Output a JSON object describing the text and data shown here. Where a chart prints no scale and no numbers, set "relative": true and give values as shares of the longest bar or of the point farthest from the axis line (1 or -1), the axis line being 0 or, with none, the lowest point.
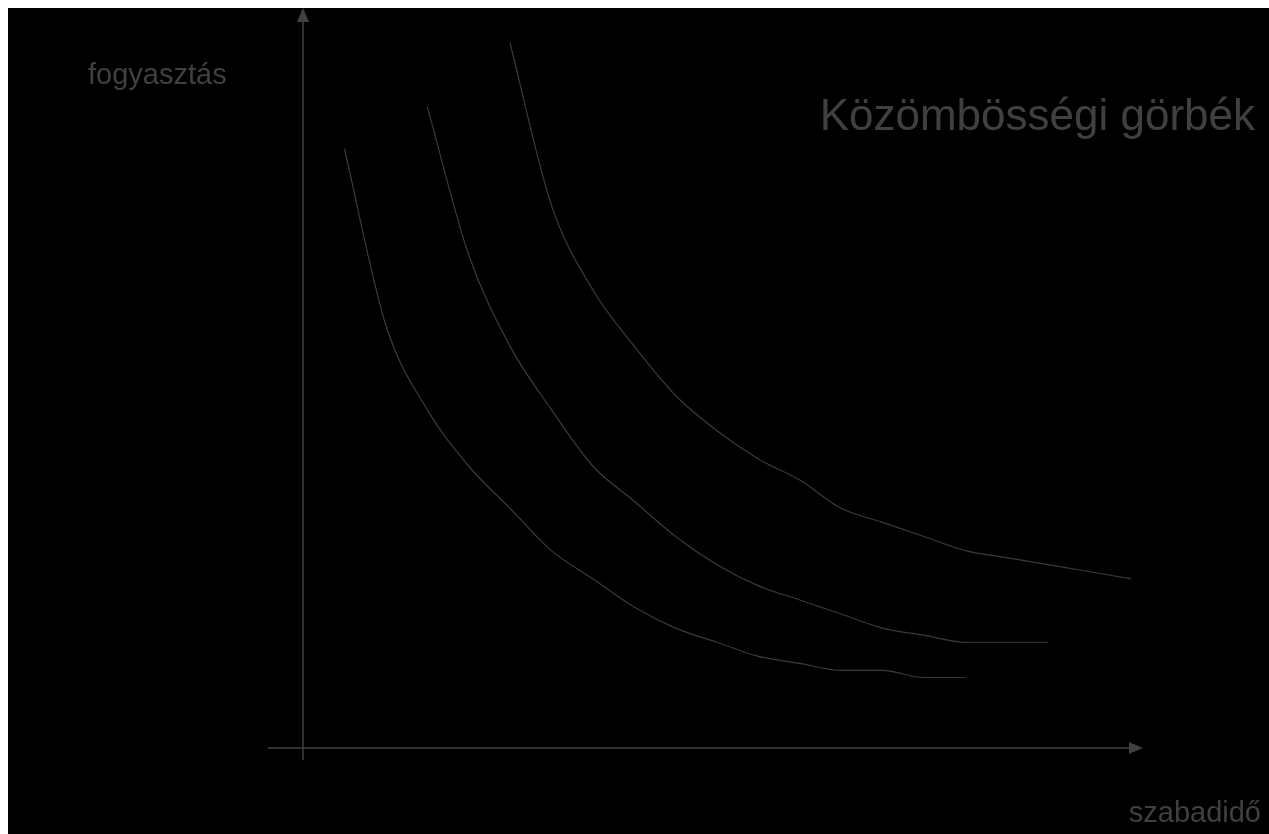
{
  "chart_data": {
    "type": "line",
    "title": "Közömbösségi görbék",
    "xlabel": "szabadidő",
    "ylabel": "fogyasztás",
    "relative": true,
    "categories": [
      null,
      null,
      null,
      null,
      null,
      null,
      null,
      null,
      null,
      null,
      null,
      null,
      null,
      null,
      null,
      null,
      null,
      null,
      null,
      null,
      null
    ],
    "series": [
      {
        "color": "#3a3a3a",
        "values": [
          null,
          0.85,
          0.6,
          0.48,
          0.4,
          0.34,
          0.28,
          0.24,
          0.2,
          0.17,
          0.15,
          0.13,
          0.12,
          0.11,
          0.11,
          0.1,
          0.1,
          null,
          null,
          null,
          null
        ]
      },
      {
        "color": "#3a3a3a",
        "values": [
          null,
          null,
          null,
          0.91,
          0.7,
          0.57,
          0.48,
          0.4,
          0.35,
          0.3,
          0.26,
          0.23,
          0.21,
          0.19,
          0.17,
          0.16,
          0.15,
          0.15,
          0.15,
          null,
          null
        ]
      },
      {
        "color": "#3a3a3a",
        "values": [
          null,
          null,
          null,
          null,
          null,
          1.0,
          0.77,
          0.65,
          0.57,
          0.5,
          0.45,
          0.41,
          0.38,
          0.34,
          0.32,
          0.3,
          0.28,
          0.27,
          0.26,
          0.25,
          0.24
        ]
      }
    ]
  }
}
